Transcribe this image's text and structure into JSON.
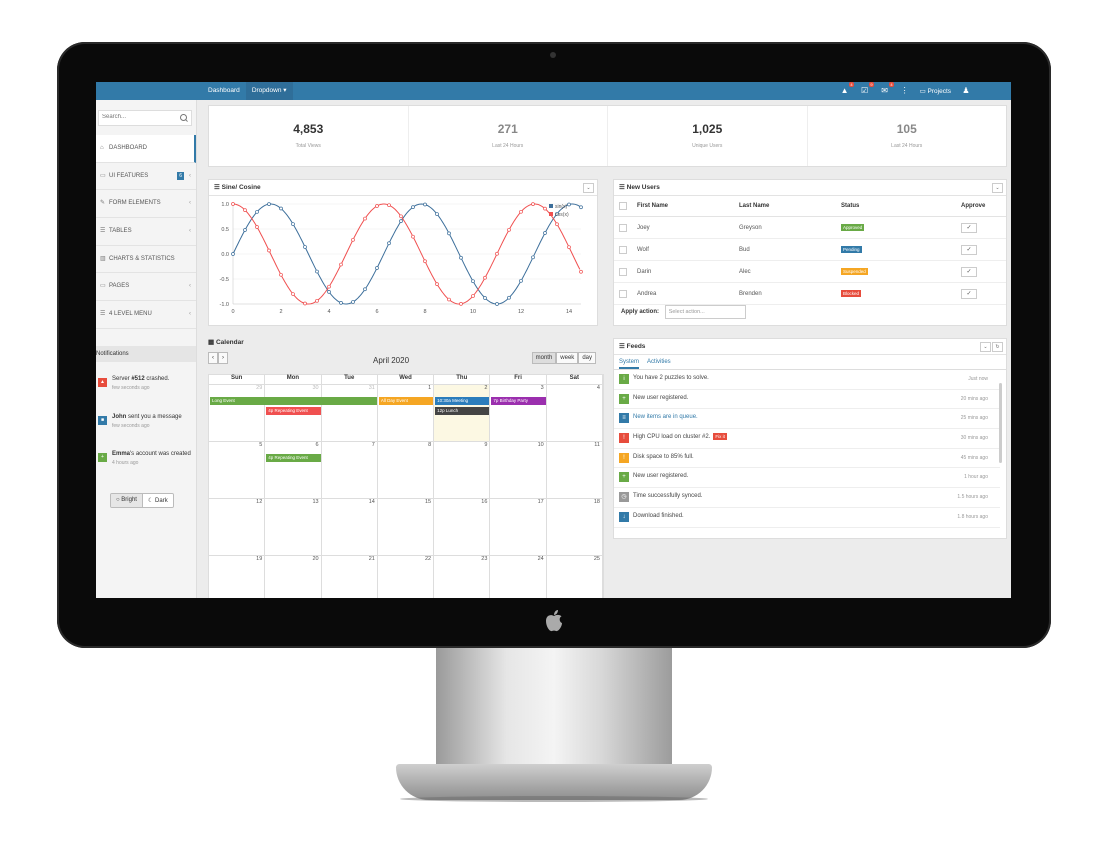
{
  "topbar": {
    "nav": [
      "Dashboard",
      "Dropdown ▾"
    ],
    "alerts_badge": "4",
    "tasks_badge": "9",
    "messages_badge": "4",
    "projects": "Projects"
  },
  "sidebar": {
    "search_placeholder": "Search...",
    "items": [
      {
        "label": "DASHBOARD",
        "icon": "home-icon"
      },
      {
        "label": "UI FEATURES",
        "icon": "desktop-icon",
        "count": "6"
      },
      {
        "label": "FORM ELEMENTS",
        "icon": "edit-icon"
      },
      {
        "label": "TABLES",
        "icon": "list-icon"
      },
      {
        "label": "CHARTS & STATISTICS",
        "icon": "chart-icon"
      },
      {
        "label": "PAGES",
        "icon": "folder-icon"
      },
      {
        "label": "4 LEVEL MENU",
        "icon": "list-icon"
      }
    ],
    "notifications_title": "Notifications",
    "notifications": [
      {
        "bold": "",
        "text_pre": "Server ",
        "text_bold": "#512",
        "text_post": " crashed.",
        "sub": "few seconds ago",
        "color": "#e74c3c"
      },
      {
        "text_pre": "",
        "text_bold": "John",
        "text_post": " sent you a message",
        "sub": "few seconds ago",
        "color": "#327aa8"
      },
      {
        "text_pre": "",
        "text_bold": "Emma",
        "text_post": "'s account was created",
        "sub": "4 hours ago",
        "color": "#69aa46"
      }
    ],
    "theme_bright": "Bright",
    "theme_dark": "Dark"
  },
  "stats": [
    {
      "value": "4,853",
      "label": "Total Views"
    },
    {
      "value": "271",
      "label": "Last 24 Hours"
    },
    {
      "value": "1,025",
      "label": "Unique Users"
    },
    {
      "value": "105",
      "label": "Last 24 Hours"
    }
  ],
  "chart_panel": {
    "title": "Sine/ Cosine"
  },
  "chart_data": {
    "type": "line",
    "title": "Sine/ Cosine",
    "xlim": [
      0,
      14.5
    ],
    "ylim": [
      -1.0,
      1.0
    ],
    "xticks": [
      "0",
      "2",
      "4",
      "6",
      "8",
      "10",
      "12",
      "14"
    ],
    "yticks": [
      "1.0",
      "0.5",
      "0.0",
      "-0.5",
      "-1.0"
    ],
    "legend_position": "top-right",
    "series": [
      {
        "name": "sin(x)",
        "color": "#3d6f9b",
        "func": "sin"
      },
      {
        "name": "cos(x)",
        "color": "#f05050",
        "func": "cos"
      }
    ]
  },
  "users_panel": {
    "title": "New Users",
    "columns": [
      "First Name",
      "Last Name",
      "Status",
      "Approve"
    ],
    "rows": [
      {
        "first": "Joey",
        "last": "Greyson",
        "status": "Approved",
        "color": "#69aa46"
      },
      {
        "first": "Wolf",
        "last": "Bud",
        "status": "Pending",
        "color": "#327aa8"
      },
      {
        "first": "Darin",
        "last": "Alec",
        "status": "Suspended",
        "color": "#f5a623"
      },
      {
        "first": "Andrea",
        "last": "Brenden",
        "status": "Blocked",
        "color": "#e74c3c"
      }
    ],
    "apply_label": "Apply action:",
    "apply_placeholder": "Select action..."
  },
  "calendar": {
    "title": "Calendar",
    "month": "April 2020",
    "views": [
      "month",
      "week",
      "day"
    ],
    "dow": [
      "Sun",
      "Mon",
      "Tue",
      "Wed",
      "Thu",
      "Fri",
      "Sat"
    ],
    "weeks": [
      [
        "29",
        "30",
        "31",
        "1",
        "2",
        "3",
        "4"
      ],
      [
        "5",
        "6",
        "7",
        "8",
        "9",
        "10",
        "11"
      ],
      [
        "12",
        "13",
        "14",
        "15",
        "16",
        "17",
        "18"
      ],
      [
        "19",
        "20",
        "21",
        "22",
        "23",
        "24",
        "25"
      ]
    ],
    "events": {
      "long": "Long Event",
      "repeat1": "4p Repeating Event",
      "allday": "All Day Event",
      "meeting": "10:30a Meeting",
      "lunch": "12p Lunch",
      "birthday": "7p Birthday Party",
      "repeat2": "4p Repeating Event"
    }
  },
  "feeds": {
    "title": "Feeds",
    "tabs": [
      "System",
      "Activities"
    ],
    "items": [
      {
        "text": "You have 2 puzzles to solve.",
        "time": "Just now",
        "color": "#69aa46",
        "icon": "i"
      },
      {
        "text": "New user registered.",
        "time": "20 mins ago",
        "color": "#69aa46",
        "icon": "+"
      },
      {
        "text": "New items are in queue.",
        "time": "25 mins ago",
        "color": "#327aa8",
        "icon": "≡"
      },
      {
        "text": "High CPU load on cluster #2.",
        "time": "30 mins ago",
        "color": "#e74c3c",
        "icon": "!",
        "fix": "Fix it"
      },
      {
        "text": "Disk space to 85% full.",
        "time": "45 mins ago",
        "color": "#f5a623",
        "icon": "!"
      },
      {
        "text": "New user registered.",
        "time": "1 hour ago",
        "color": "#69aa46",
        "icon": "+"
      },
      {
        "text": "Time successfully synced.",
        "time": "1.5 hours ago",
        "color": "#999999",
        "icon": "◷"
      },
      {
        "text": "Download finished.",
        "time": "1.8 hours ago",
        "color": "#327aa8",
        "icon": "↓"
      }
    ]
  }
}
